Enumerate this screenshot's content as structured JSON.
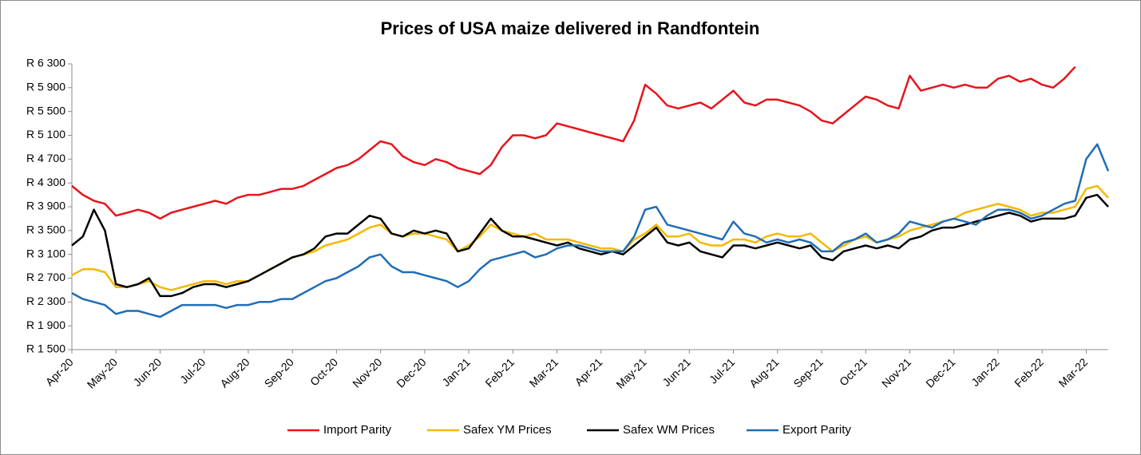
{
  "chart_data": {
    "type": "line",
    "title": "Prices of USA maize delivered in Randfontein",
    "categories": [
      "Apr-20",
      null,
      null,
      null,
      "May-20",
      null,
      null,
      null,
      "Jun-20",
      null,
      null,
      null,
      "Jul-20",
      null,
      null,
      null,
      "Aug-20",
      null,
      null,
      null,
      "Sep-20",
      null,
      null,
      null,
      "Oct-20",
      null,
      null,
      null,
      "Nov-20",
      null,
      null,
      null,
      "Dec-20",
      null,
      null,
      null,
      "Jan-21",
      null,
      null,
      null,
      "Feb-21",
      null,
      null,
      null,
      "Mar-21",
      null,
      null,
      null,
      "Apr-21",
      null,
      null,
      null,
      "May-21",
      null,
      null,
      null,
      "Jun-21",
      null,
      null,
      null,
      "Jul-21",
      null,
      null,
      null,
      "Aug-21",
      null,
      null,
      null,
      "Sep-21",
      null,
      null,
      null,
      "Oct-21",
      null,
      null,
      null,
      "Nov-21",
      null,
      null,
      null,
      "Dec-21",
      null,
      null,
      null,
      "Jan-22",
      null,
      null,
      null,
      "Feb-22",
      null,
      null,
      null,
      "Mar-22",
      null,
      null
    ],
    "series": [
      {
        "name": "Import Parity",
        "color": "#e8141b",
        "values": [
          4250,
          4100,
          4000,
          3950,
          3750,
          3800,
          3850,
          3800,
          3700,
          3800,
          3850,
          3900,
          3950,
          4000,
          3950,
          4050,
          4100,
          4100,
          4150,
          4200,
          4200,
          4250,
          4350,
          4450,
          4550,
          4600,
          4700,
          4850,
          5000,
          4950,
          4750,
          4650,
          4600,
          4700,
          4650,
          4550,
          4500,
          4450,
          4600,
          4900,
          5100,
          5100,
          5050,
          5100,
          5300,
          5250,
          5200,
          5150,
          5100,
          5050,
          5000,
          5350,
          5950,
          5800,
          5600,
          5550,
          5600,
          5650,
          5550,
          5700,
          5850,
          5650,
          5600,
          5700,
          5700,
          5650,
          5600,
          5500,
          5350,
          5300,
          5450,
          5600,
          5750,
          5700,
          5600,
          5550,
          6100,
          5850,
          5900,
          5950,
          5900,
          5950,
          5900,
          5900,
          6050,
          6100,
          6000,
          6050,
          5950,
          5900,
          6050,
          6250,
          null,
          null,
          null
        ]
      },
      {
        "name": "Safex YM Prices",
        "color": "#f5b800",
        "values": [
          2750,
          2850,
          2850,
          2800,
          2550,
          2550,
          2600,
          2650,
          2550,
          2500,
          2550,
          2600,
          2650,
          2650,
          2600,
          2650,
          2650,
          2750,
          2850,
          2950,
          3050,
          3100,
          3150,
          3250,
          3300,
          3350,
          3450,
          3550,
          3600,
          3450,
          3400,
          3450,
          3450,
          3400,
          3350,
          3150,
          3250,
          3400,
          3600,
          3500,
          3450,
          3400,
          3450,
          3350,
          3350,
          3350,
          3300,
          3250,
          3200,
          3200,
          3150,
          3350,
          3450,
          3600,
          3400,
          3400,
          3450,
          3300,
          3250,
          3250,
          3350,
          3350,
          3300,
          3400,
          3450,
          3400,
          3400,
          3450,
          3300,
          3150,
          3250,
          3350,
          3400,
          3300,
          3350,
          3400,
          3500,
          3550,
          3600,
          3650,
          3700,
          3800,
          3850,
          3900,
          3950,
          3900,
          3850,
          3750,
          3800,
          3800,
          3850,
          3900,
          4200,
          4250,
          4050
        ]
      },
      {
        "name": "Safex WM Prices",
        "color": "#000000",
        "values": [
          3250,
          3400,
          3850,
          3500,
          2600,
          2550,
          2600,
          2700,
          2400,
          2400,
          2450,
          2550,
          2600,
          2600,
          2550,
          2600,
          2650,
          2750,
          2850,
          2950,
          3050,
          3100,
          3200,
          3400,
          3450,
          3450,
          3600,
          3750,
          3700,
          3450,
          3400,
          3500,
          3450,
          3500,
          3450,
          3150,
          3200,
          3450,
          3700,
          3500,
          3400,
          3400,
          3350,
          3300,
          3250,
          3300,
          3200,
          3150,
          3100,
          3150,
          3100,
          3250,
          3400,
          3550,
          3300,
          3250,
          3300,
          3150,
          3100,
          3050,
          3250,
          3250,
          3200,
          3250,
          3300,
          3250,
          3200,
          3250,
          3050,
          3000,
          3150,
          3200,
          3250,
          3200,
          3250,
          3200,
          3350,
          3400,
          3500,
          3550,
          3550,
          3600,
          3650,
          3700,
          3750,
          3800,
          3750,
          3650,
          3700,
          3700,
          3700,
          3750,
          4050,
          4100,
          3900
        ]
      },
      {
        "name": "Export Parity",
        "color": "#1f6db5",
        "values": [
          2450,
          2350,
          2300,
          2250,
          2100,
          2150,
          2150,
          2100,
          2050,
          2150,
          2250,
          2250,
          2250,
          2250,
          2200,
          2250,
          2250,
          2300,
          2300,
          2350,
          2350,
          2450,
          2550,
          2650,
          2700,
          2800,
          2900,
          3050,
          3100,
          2900,
          2800,
          2800,
          2750,
          2700,
          2650,
          2550,
          2650,
          2850,
          3000,
          3050,
          3100,
          3150,
          3050,
          3100,
          3200,
          3250,
          3250,
          3200,
          3150,
          3150,
          3150,
          3400,
          3850,
          3900,
          3600,
          3550,
          3500,
          3450,
          3400,
          3350,
          3650,
          3450,
          3400,
          3300,
          3350,
          3300,
          3350,
          3300,
          3150,
          3150,
          3300,
          3350,
          3450,
          3300,
          3350,
          3450,
          3650,
          3600,
          3550,
          3650,
          3700,
          3650,
          3600,
          3750,
          3850,
          3850,
          3800,
          3700,
          3750,
          3850,
          3950,
          4000,
          4700,
          4950,
          4500
        ]
      }
    ],
    "ylim": [
      1500,
      6300
    ],
    "yticks": [
      {
        "value": 1500,
        "label": "R 1 500"
      },
      {
        "value": 1900,
        "label": "R 1 900"
      },
      {
        "value": 2300,
        "label": "R 2 300"
      },
      {
        "value": 2700,
        "label": "R 2 700"
      },
      {
        "value": 3100,
        "label": "R 3 100"
      },
      {
        "value": 3500,
        "label": "R 3 500"
      },
      {
        "value": 3900,
        "label": "R 3 900"
      },
      {
        "value": 4300,
        "label": "R 4 300"
      },
      {
        "value": 4700,
        "label": "R 4 700"
      },
      {
        "value": 5100,
        "label": "R 5 100"
      },
      {
        "value": 5500,
        "label": "R 5 500"
      },
      {
        "value": 5900,
        "label": "R 5 900"
      },
      {
        "value": 6300,
        "label": "R 6 300"
      }
    ],
    "grid": false,
    "legend": "bottom"
  }
}
